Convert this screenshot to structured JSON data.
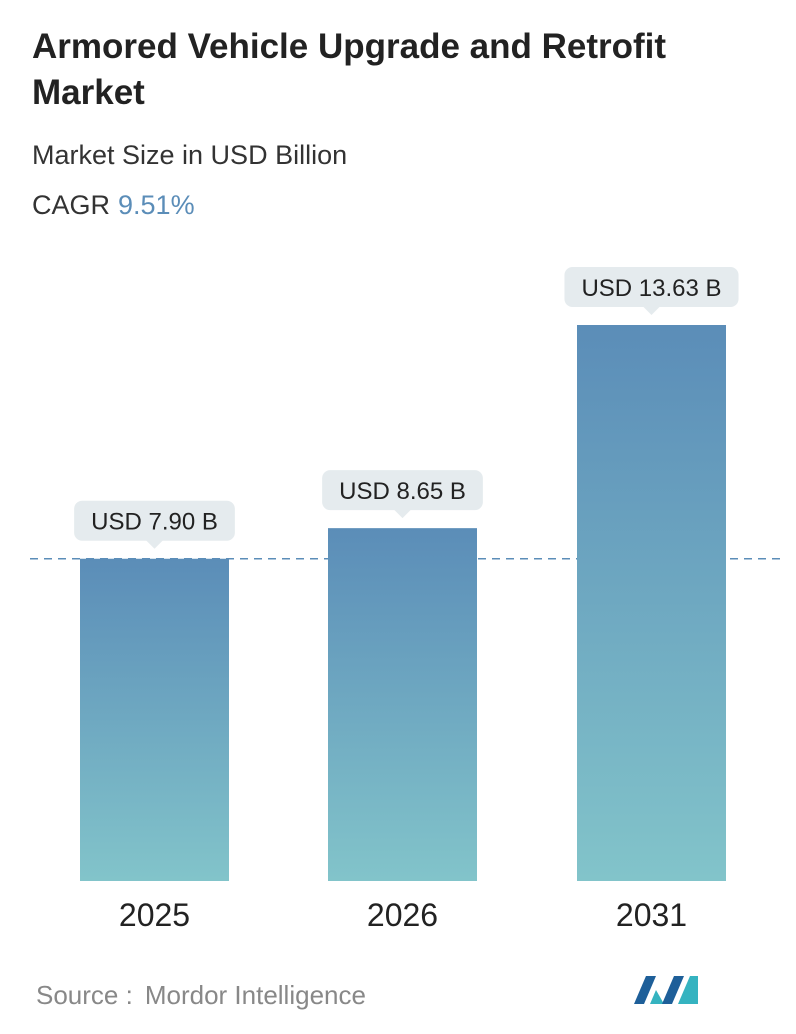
{
  "chart_data": {
    "type": "bar",
    "title": "Armored Vehicle Upgrade and Retrofit Market",
    "subtitle": "Market Size in USD Billion",
    "cagr_label": "CAGR",
    "cagr_value": "9.51%",
    "categories": [
      "2025",
      "2026",
      "2031"
    ],
    "values": [
      7.9,
      8.65,
      13.63
    ],
    "value_labels": [
      "USD 7.90 B",
      "USD 8.65 B",
      "USD 13.63 B"
    ],
    "gradient": [
      "#5b8db8",
      "#82c4ca"
    ],
    "source_label": "Source :",
    "source": "Mordor Intelligence"
  }
}
